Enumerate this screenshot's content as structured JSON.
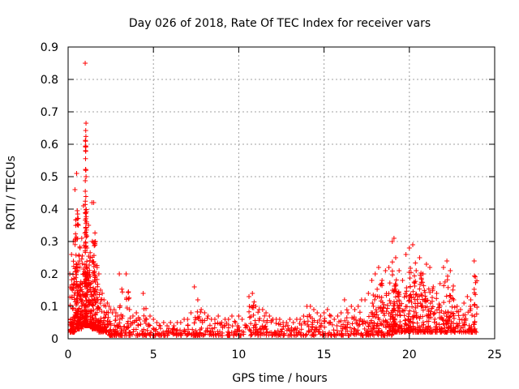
{
  "chart_data": {
    "type": "scatter",
    "title": "Day 026 of 2018, Rate Of TEC Index for receiver vars",
    "xlabel": "GPS time / hours",
    "ylabel": "ROTI / TECUs",
    "xlim": [
      0,
      25
    ],
    "ylim": [
      0,
      0.9
    ],
    "xticks": [
      0,
      5,
      10,
      15,
      20,
      25
    ],
    "yticks": [
      0,
      0.1,
      0.2,
      0.3,
      0.4,
      0.5,
      0.6,
      0.7,
      0.8,
      0.9
    ],
    "xtick_labels": [
      "0",
      "5",
      "10",
      "15",
      "20",
      "25"
    ],
    "ytick_labels": [
      "0",
      "0.1",
      "0.2",
      "0.3",
      "0.4",
      "0.5",
      "0.6",
      "0.7",
      "0.8",
      "0.9"
    ],
    "grid": true,
    "marker": "+",
    "color": "#ff0000",
    "series": [
      {
        "name": "ROTI",
        "x": [
          0.1,
          0.2,
          0.3,
          0.4,
          0.5,
          0.6,
          0.7,
          0.8,
          0.9,
          1.0,
          1.05,
          1.1,
          1.2,
          1.3,
          1.4,
          1.5,
          1.6,
          1.7,
          1.8,
          1.9,
          2.0,
          2.1,
          2.2,
          2.3,
          2.4,
          2.5,
          2.6,
          2.7,
          2.8,
          2.9,
          3.0,
          3.2,
          3.4,
          3.6,
          3.8,
          4.0,
          4.2,
          4.4,
          4.6,
          4.8,
          5.0,
          5.2,
          5.4,
          5.6,
          5.8,
          6.0,
          6.2,
          6.4,
          6.6,
          6.8,
          7.0,
          7.2,
          7.4,
          7.6,
          7.8,
          8.0,
          8.2,
          8.4,
          8.6,
          8.8,
          9.0,
          9.2,
          9.4,
          9.6,
          9.8,
          10.0,
          10.2,
          10.6,
          10.8,
          11.0,
          11.2,
          11.4,
          11.6,
          11.8,
          12.0,
          12.2,
          12.4,
          12.6,
          12.8,
          13.0,
          13.2,
          13.4,
          13.6,
          13.8,
          14.0,
          14.2,
          14.4,
          14.6,
          14.8,
          15.0,
          15.2,
          15.4,
          15.6,
          15.8,
          16.0,
          16.2,
          16.4,
          16.6,
          16.8,
          17.0,
          17.2,
          17.4,
          17.6,
          17.8,
          18.0,
          18.2,
          18.4,
          18.6,
          18.8,
          19.0,
          19.1,
          19.2,
          19.4,
          19.6,
          19.8,
          20.0,
          20.2,
          20.4,
          20.6,
          20.8,
          21.0,
          21.2,
          21.4,
          21.6,
          21.8,
          22.0,
          22.2,
          22.4,
          22.6,
          22.8,
          23.0,
          23.2,
          23.4,
          23.6,
          23.8
        ],
        "y": [
          0.2,
          0.26,
          0.3,
          0.46,
          0.51,
          0.35,
          0.28,
          0.31,
          0.41,
          0.85,
          0.5,
          0.28,
          0.35,
          0.25,
          0.42,
          0.42,
          0.3,
          0.22,
          0.2,
          0.15,
          0.14,
          0.12,
          0.1,
          0.11,
          0.1,
          0.09,
          0.08,
          0.09,
          0.08,
          0.07,
          0.2,
          0.07,
          0.2,
          0.09,
          0.07,
          0.08,
          0.06,
          0.14,
          0.06,
          0.07,
          0.06,
          0.05,
          0.04,
          0.05,
          0.04,
          0.05,
          0.04,
          0.05,
          0.05,
          0.06,
          0.06,
          0.08,
          0.16,
          0.12,
          0.09,
          0.08,
          0.07,
          0.06,
          0.06,
          0.07,
          0.05,
          0.06,
          0.06,
          0.07,
          0.05,
          0.07,
          0.06,
          0.13,
          0.14,
          0.1,
          0.09,
          0.09,
          0.08,
          0.07,
          0.06,
          0.06,
          0.06,
          0.05,
          0.05,
          0.06,
          0.05,
          0.06,
          0.06,
          0.07,
          0.1,
          0.1,
          0.09,
          0.08,
          0.07,
          0.08,
          0.09,
          0.07,
          0.06,
          0.07,
          0.08,
          0.12,
          0.08,
          0.1,
          0.09,
          0.1,
          0.12,
          0.12,
          0.14,
          0.18,
          0.2,
          0.22,
          0.18,
          0.21,
          0.22,
          0.3,
          0.31,
          0.25,
          0.21,
          0.18,
          0.26,
          0.28,
          0.29,
          0.21,
          0.25,
          0.2,
          0.23,
          0.22,
          0.16,
          0.14,
          0.17,
          0.22,
          0.24,
          0.21,
          0.12,
          0.1,
          0.09,
          0.11,
          0.13,
          0.12,
          0.24
        ],
        "min": [
          0.02,
          0.02,
          0.02,
          0.03,
          0.03,
          0.03,
          0.03,
          0.04,
          0.04,
          0.04,
          0.04,
          0.04,
          0.04,
          0.04,
          0.03,
          0.03,
          0.03,
          0.03,
          0.02,
          0.02,
          0.02,
          0.02,
          0.02,
          0.02,
          0.01,
          0.01,
          0.01,
          0.01,
          0.01,
          0.01,
          0.01,
          0.01,
          0.01,
          0.01,
          0.01,
          0.01,
          0.01,
          0.01,
          0.01,
          0.01,
          0.01,
          0.01,
          0.01,
          0.01,
          0.01,
          0.01,
          0.01,
          0.01,
          0.01,
          0.01,
          0.01,
          0.01,
          0.01,
          0.01,
          0.01,
          0.01,
          0.01,
          0.01,
          0.01,
          0.01,
          0.01,
          0.01,
          0.01,
          0.01,
          0.01,
          0.01,
          0.01,
          0.01,
          0.01,
          0.01,
          0.01,
          0.01,
          0.01,
          0.01,
          0.01,
          0.01,
          0.01,
          0.01,
          0.01,
          0.01,
          0.01,
          0.01,
          0.01,
          0.01,
          0.01,
          0.01,
          0.01,
          0.01,
          0.01,
          0.01,
          0.01,
          0.01,
          0.01,
          0.01,
          0.01,
          0.01,
          0.01,
          0.01,
          0.01,
          0.01,
          0.01,
          0.01,
          0.01,
          0.01,
          0.01,
          0.01,
          0.01,
          0.01,
          0.01,
          0.02,
          0.02,
          0.02,
          0.02,
          0.02,
          0.02,
          0.02,
          0.02,
          0.02,
          0.02,
          0.02,
          0.02,
          0.02,
          0.02,
          0.02,
          0.02,
          0.02,
          0.02,
          0.02,
          0.02,
          0.02,
          0.02,
          0.02,
          0.02,
          0.02,
          0.02
        ]
      }
    ]
  }
}
